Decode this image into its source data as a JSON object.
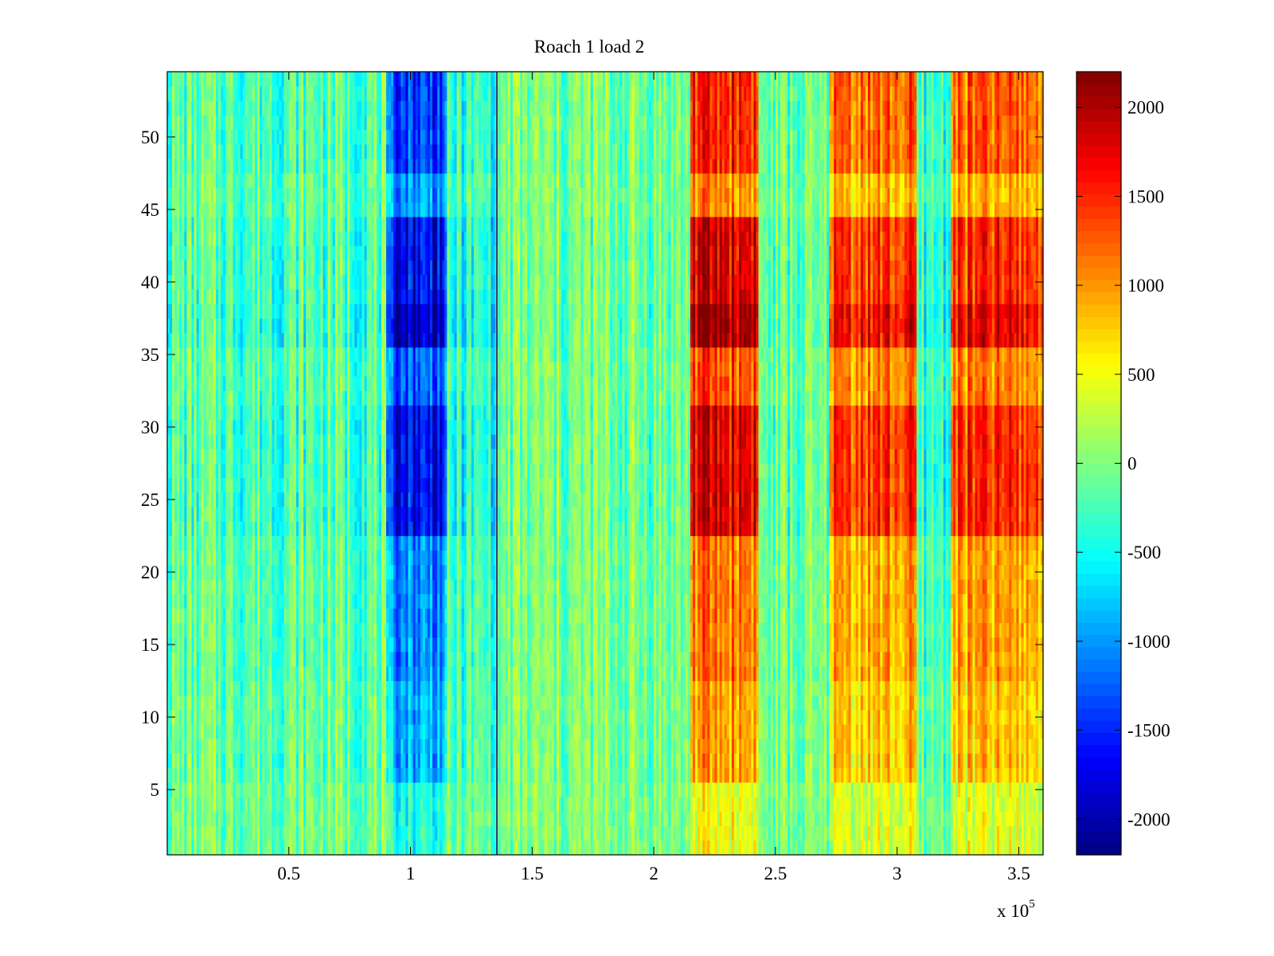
{
  "chart_data": {
    "type": "heatmap",
    "title": "Roach 1 load 2",
    "xlabel": "",
    "ylabel": "",
    "x_exponent_label": {
      "prefix": "x 10",
      "exponent": "5"
    },
    "xlim": [
      0,
      3.6
    ],
    "ylim": [
      0.5,
      54.5
    ],
    "xticks": [
      0.5,
      1,
      1.5,
      2,
      2.5,
      3,
      3.5
    ],
    "xtick_labels": [
      "0.5",
      "1",
      "1.5",
      "2",
      "2.5",
      "3",
      "3.5"
    ],
    "yticks": [
      5,
      10,
      15,
      20,
      25,
      30,
      35,
      40,
      45,
      50
    ],
    "ytick_labels": [
      "5",
      "10",
      "15",
      "20",
      "25",
      "30",
      "35",
      "40",
      "45",
      "50"
    ],
    "colorbar": {
      "colormap": "jet",
      "range": [
        -2200,
        2200
      ],
      "ticks": [
        2000,
        1500,
        1000,
        500,
        0,
        -500,
        -1000,
        -1500,
        -2000
      ],
      "tick_labels": [
        "2000",
        "1500",
        "1000",
        "500",
        "0",
        "-500",
        "-1000",
        "-1500",
        "-2000"
      ],
      "placement": "right"
    },
    "x_segments": [
      {
        "x": [
          0,
          0.9
        ],
        "value": -250
      },
      {
        "x": [
          0.9,
          1.15
        ],
        "value": -1700
      },
      {
        "x": [
          1.15,
          1.35
        ],
        "value": -500
      },
      {
        "x": [
          1.35,
          2.15
        ],
        "value": -100
      },
      {
        "x": [
          2.15,
          2.43
        ],
        "value": 1900
      },
      {
        "x": [
          2.43,
          2.72
        ],
        "value": -200
      },
      {
        "x": [
          2.72,
          3.08
        ],
        "value": 1500
      },
      {
        "x": [
          3.08,
          3.22
        ],
        "value": -400
      },
      {
        "x": [
          3.22,
          3.6
        ],
        "value": 1500
      }
    ],
    "row_bands": [
      {
        "rows": [
          1,
          5
        ],
        "strength": 0.25
      },
      {
        "rows": [
          6,
          12
        ],
        "strength": 0.5
      },
      {
        "rows": [
          13,
          22
        ],
        "strength": 0.6
      },
      {
        "rows": [
          23,
          31
        ],
        "strength": 0.95
      },
      {
        "rows": [
          32,
          35
        ],
        "strength": 0.7
      },
      {
        "rows": [
          36,
          38
        ],
        "strength": 1.1
      },
      {
        "rows": [
          39,
          44
        ],
        "strength": 0.95
      },
      {
        "rows": [
          45,
          47
        ],
        "strength": 0.55
      },
      {
        "rows": [
          48,
          54
        ],
        "strength": 0.8
      }
    ],
    "grid": false
  }
}
